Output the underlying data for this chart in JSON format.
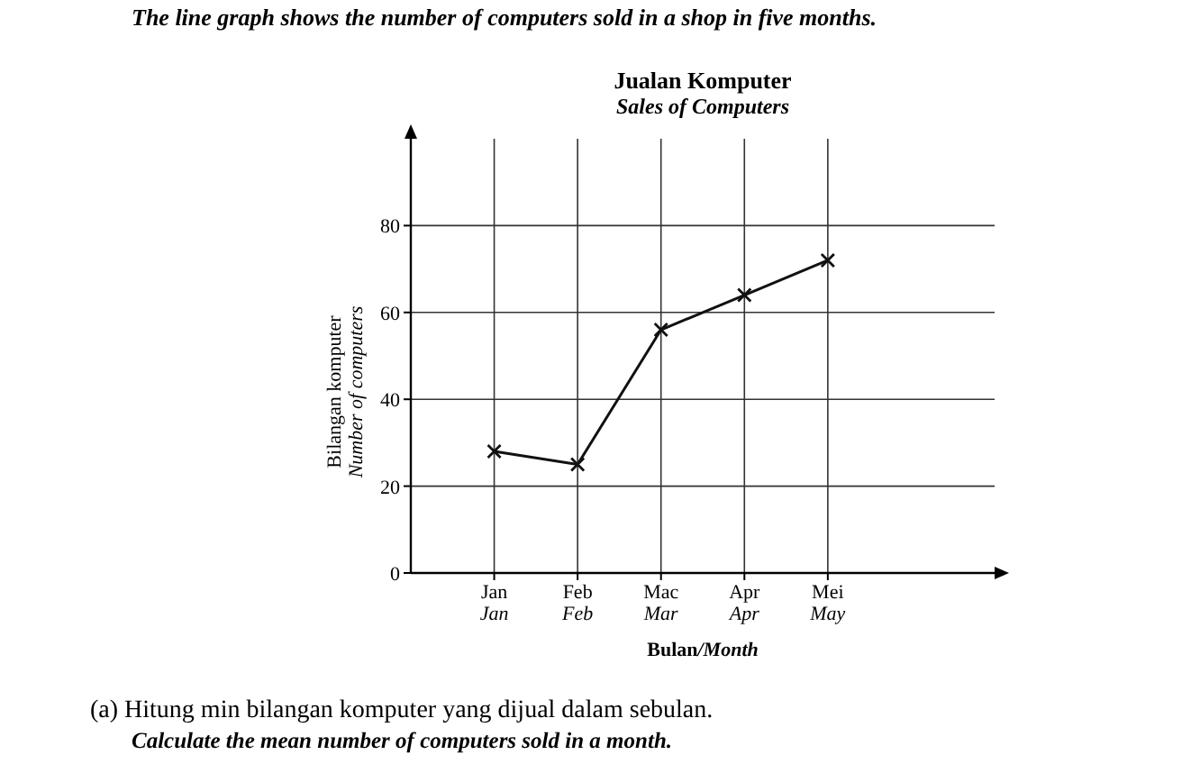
{
  "chart_data": {
    "type": "line",
    "title": "Jualan Komputer",
    "subtitle": "Sales of Computers",
    "xlabel": "Bulan/Month",
    "ylabel": "Bilangan komputer\nNumber of computers",
    "annotations": [
      "The line graph shows the number of computers sold in a shop in five months.",
      "(a) Hitung min bilangan komputer yang dijual dalam sebulan.",
      "Calculate the mean number of computers sold in a month."
    ],
    "categories": [
      "Jan\nJan",
      "Feb\nFeb",
      "Mac\nMar",
      "Apr\nApr",
      "Mei\nMay"
    ],
    "series": [
      {
        "color": "#111111",
        "values": [
          28,
          25,
          56,
          64,
          72
        ]
      }
    ],
    "ylim": [
      0,
      100
    ],
    "yticks": [
      0,
      20,
      40,
      60,
      80
    ],
    "grid": true,
    "marker": "cross",
    "line_style": "solid"
  }
}
